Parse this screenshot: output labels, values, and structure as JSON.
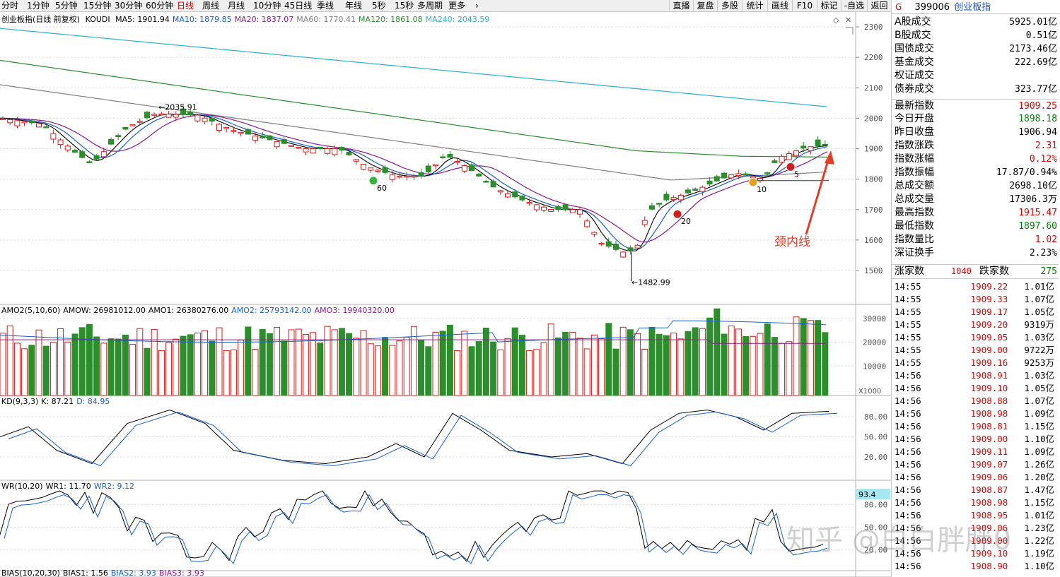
{
  "toolbar": {
    "periods": [
      "分时",
      "1分钟",
      "5分钟",
      "15分钟",
      "30分钟",
      "60分钟",
      "日线",
      "周线",
      "月线",
      "10分钟",
      "45日线",
      "季线",
      "年线",
      "5秒",
      "15秒",
      "多周期",
      "更多"
    ],
    "active_period": "日线",
    "tools": [
      "直播",
      "复盘",
      "多股",
      "统计",
      "画线",
      "F10",
      "标记",
      "-自选",
      "返回"
    ]
  },
  "main_chart": {
    "title": "创业板指(日线 前复权)",
    "indicator": "KOUDI",
    "ma": [
      {
        "label": "MA5: 1901.94",
        "color": "#000000"
      },
      {
        "label": "MA10: 1879.85",
        "color": "#1a60c8"
      },
      {
        "label": "MA20: 1837.07",
        "color": "#8b1a8b"
      },
      {
        "label": "MA60: 1770.41",
        "color": "#808080"
      },
      {
        "label": "MA120: 1861.08",
        "color": "#2e8b2e"
      },
      {
        "label": "MA240: 2043.59",
        "color": "#2ab0d0"
      }
    ],
    "yaxis": [
      "2300",
      "2200",
      "2100",
      "2000",
      "1900",
      "1800",
      "1700",
      "1600",
      "1500"
    ],
    "high_label": "2035.91",
    "low_label": "1482.99",
    "markers": [
      "60",
      "20",
      "5",
      "10"
    ],
    "annotation": "颈内线"
  },
  "amo_panel": {
    "legend": [
      {
        "label": "AMO2(5,10,60)",
        "color": "#000000"
      },
      {
        "label": "AMOW: 26981012.00",
        "color": "#000000"
      },
      {
        "label": "AMO1: 26380276.00",
        "color": "#000000"
      },
      {
        "label": "AMO2: 25793142.00",
        "color": "#1a60c8"
      },
      {
        "label": "AMO3: 19940320.00",
        "color": "#8b1a8b"
      }
    ],
    "yaxis": [
      "30000",
      "20000",
      "10000"
    ],
    "unit": "X1000"
  },
  "kd_panel": {
    "legend": [
      {
        "label": "KD(9,3,3)",
        "color": "#000000"
      },
      {
        "label": "K: 87.21",
        "color": "#000000"
      },
      {
        "label": "D: 84.95",
        "color": "#1a60c8"
      }
    ],
    "yaxis": [
      "80.00",
      "50.00",
      "20.00"
    ]
  },
  "wr_panel": {
    "legend": [
      {
        "label": "WR(10,20)",
        "color": "#000000"
      },
      {
        "label": "WR1: 11.70",
        "color": "#000000"
      },
      {
        "label": "WR2: 9.12",
        "color": "#1a60c8"
      }
    ],
    "yaxis": [
      "80.00",
      "50.00",
      "20.00"
    ],
    "current": "93.4"
  },
  "bias_panel": {
    "legend": [
      {
        "label": "BIAS(10,20,30)",
        "color": "#000000"
      },
      {
        "label": "BIAS1: 1.56",
        "color": "#000000"
      },
      {
        "label": "BIAS2: 3.93",
        "color": "#1a60c8"
      },
      {
        "label": "BIAS3: 3.93",
        "color": "#8b1a8b"
      }
    ]
  },
  "right_panel": {
    "flag": "G",
    "code": "399006",
    "name": "创业板指",
    "stats": [
      {
        "k": "A股成交",
        "v": "5925.01亿",
        "c": "#000000"
      },
      {
        "k": "B股成交",
        "v": "0.51亿",
        "c": "#000000"
      },
      {
        "k": "国债成交",
        "v": "2173.46亿",
        "c": "#000000"
      },
      {
        "k": "基金成交",
        "v": "222.69亿",
        "c": "#000000"
      },
      {
        "k": "权证成交",
        "v": "",
        "c": "#000000"
      },
      {
        "k": "债券成交",
        "v": "323.77亿",
        "c": "#000000"
      },
      {
        "k": "最新指数",
        "v": "1909.25",
        "c": "#e00000"
      },
      {
        "k": "今日开盘",
        "v": "1898.18",
        "c": "#008000"
      },
      {
        "k": "昨日收盘",
        "v": "1906.94",
        "c": "#000000"
      },
      {
        "k": "指数涨跌",
        "v": "2.31",
        "c": "#e00000"
      },
      {
        "k": "指数涨幅",
        "v": "0.12%",
        "c": "#e00000"
      },
      {
        "k": "指数振幅",
        "v": "17.87/0.94%",
        "c": "#000000"
      },
      {
        "k": "总成交额",
        "v": "2698.10亿",
        "c": "#000000"
      },
      {
        "k": "总成交量",
        "v": "17306.3万",
        "c": "#000000"
      },
      {
        "k": "最高指数",
        "v": "1915.47",
        "c": "#e00000"
      },
      {
        "k": "最低指数",
        "v": "1897.60",
        "c": "#008000"
      },
      {
        "k": "指数量比",
        "v": "1.02",
        "c": "#e00000"
      },
      {
        "k": "深证换手",
        "v": "2.23%",
        "c": "#000000"
      }
    ],
    "updown": {
      "up_label": "涨家数",
      "up": "1040",
      "down_label": "跌家数",
      "down": "275"
    },
    "ticks": [
      {
        "t": "14:55",
        "p": "1909.22",
        "a": "1.01亿"
      },
      {
        "t": "14:55",
        "p": "1909.33",
        "a": "1.07亿"
      },
      {
        "t": "14:55",
        "p": "1909.17",
        "a": "1.05亿"
      },
      {
        "t": "14:55",
        "p": "1909.20",
        "a": "9319万"
      },
      {
        "t": "14:55",
        "p": "1909.05",
        "a": "1.03亿"
      },
      {
        "t": "14:55",
        "p": "1909.00",
        "a": "9722万"
      },
      {
        "t": "14:55",
        "p": "1909.16",
        "a": "9253万"
      },
      {
        "t": "14:56",
        "p": "1908.91",
        "a": "1.03亿"
      },
      {
        "t": "14:56",
        "p": "1909.10",
        "a": "1.05亿"
      },
      {
        "t": "14:56",
        "p": "1908.88",
        "a": "1.07亿"
      },
      {
        "t": "14:56",
        "p": "1908.98",
        "a": "1.09亿"
      },
      {
        "t": "14:56",
        "p": "1908.81",
        "a": "1.15亿"
      },
      {
        "t": "14:56",
        "p": "1909.00",
        "a": "1.10亿"
      },
      {
        "t": "14:56",
        "p": "1909.11",
        "a": "1.09亿"
      },
      {
        "t": "14:56",
        "p": "1909.07",
        "a": "1.26亿"
      },
      {
        "t": "14:56",
        "p": "1909.06",
        "a": "1.20亿"
      },
      {
        "t": "14:56",
        "p": "1908.87",
        "a": "1.47亿"
      },
      {
        "t": "14:56",
        "p": "1908.98",
        "a": "1.15亿"
      },
      {
        "t": "14:56",
        "p": "1908.95",
        "a": "1.01亿"
      },
      {
        "t": "14:56",
        "p": "1909.06",
        "a": "1.23亿"
      },
      {
        "t": "14:56",
        "p": "1909.00",
        "a": "1.22亿"
      },
      {
        "t": "14:56",
        "p": "1909.10",
        "a": "1.19亿"
      },
      {
        "t": "14:56",
        "p": "1908.90",
        "a": "1.10亿"
      }
    ],
    "tick_price_color": "#e00000"
  },
  "watermark": "知乎 @白白胖胖0"
}
